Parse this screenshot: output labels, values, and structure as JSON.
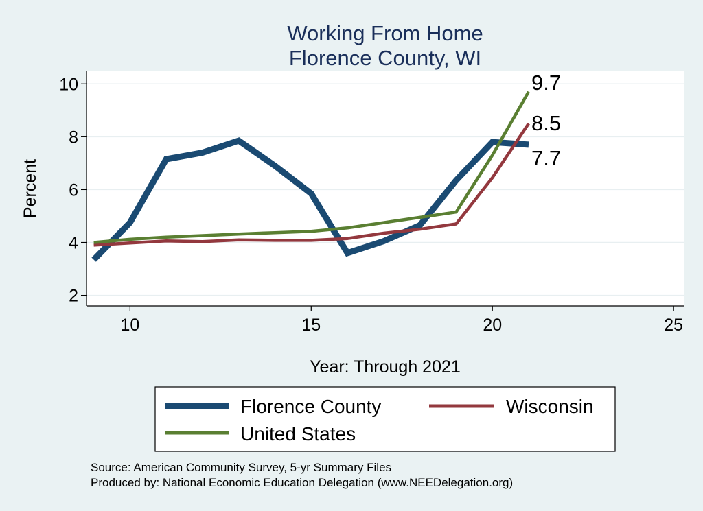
{
  "chart_data": {
    "type": "line",
    "title": [
      "Working From Home",
      "Florence County, WI"
    ],
    "xlabel": "Year: Through 2021",
    "ylabel": "Percent",
    "xlim": [
      8.8,
      25.3
    ],
    "ylim": [
      1.6,
      10.5
    ],
    "xticks": [
      10,
      15,
      20,
      25
    ],
    "yticks": [
      2,
      4,
      6,
      8,
      10
    ],
    "grid": "horizontal",
    "legend_position": "bottom",
    "series": [
      {
        "name": "Florence County",
        "color": "#1a4a72",
        "x": [
          9,
          10,
          11,
          12,
          13,
          14,
          15,
          16,
          17,
          18,
          19,
          20,
          21
        ],
        "y": [
          3.35,
          4.75,
          7.15,
          7.4,
          7.85,
          6.9,
          5.85,
          3.6,
          4.05,
          4.65,
          6.35,
          7.8,
          7.7
        ],
        "end_label": "7.7"
      },
      {
        "name": "Wisconsin",
        "color": "#93383e",
        "x": [
          9,
          10,
          11,
          12,
          13,
          14,
          15,
          16,
          17,
          18,
          19,
          20,
          21
        ],
        "y": [
          3.9,
          3.98,
          4.06,
          4.03,
          4.1,
          4.08,
          4.08,
          4.15,
          4.35,
          4.5,
          4.7,
          6.45,
          8.5
        ],
        "end_label": "8.5"
      },
      {
        "name": "United States",
        "color": "#5a7f32",
        "x": [
          9,
          10,
          11,
          12,
          13,
          14,
          15,
          16,
          17,
          18,
          19,
          20,
          21
        ],
        "y": [
          4.0,
          4.12,
          4.2,
          4.26,
          4.32,
          4.37,
          4.42,
          4.55,
          4.75,
          4.95,
          5.15,
          7.3,
          9.7
        ],
        "end_label": "9.7"
      }
    ]
  },
  "source": {
    "line1": "Source: American Community Survey, 5-yr Summary Files",
    "line2": "Produced by: National Economic Education Delegation (www.NEEDelegation.org)"
  }
}
